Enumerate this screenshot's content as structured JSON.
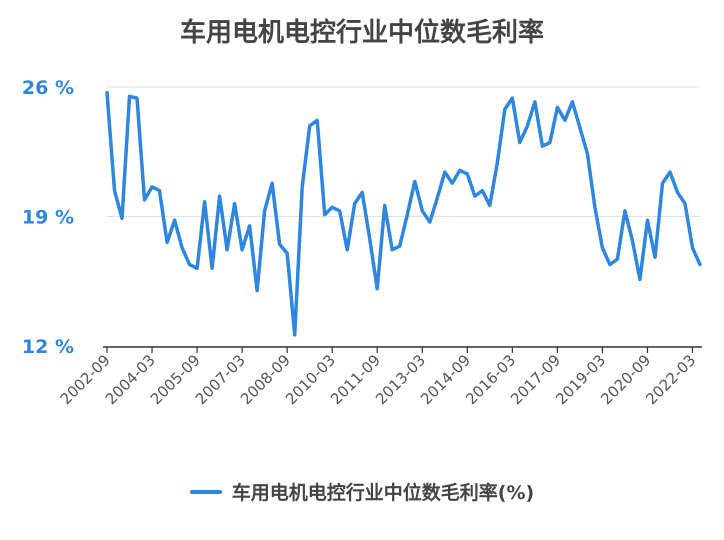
{
  "chart_data": {
    "type": "line",
    "title": "车用电机电控行业中位数毛利率",
    "xlabel": "",
    "ylabel": "",
    "y_ticks": [
      "26 %",
      "19 %",
      "12 %"
    ],
    "y_tick_values": [
      26,
      19,
      12
    ],
    "ylim": [
      12,
      26
    ],
    "x_tick_labels": [
      "2002-09",
      "2004-03",
      "2005-09",
      "2007-03",
      "2008-09",
      "2010-03",
      "2011-09",
      "2013-03",
      "2014-09",
      "2016-03",
      "2017-09",
      "2019-03",
      "2020-09",
      "2022-03"
    ],
    "x": [
      "2002-09",
      "2002-12",
      "2003-03",
      "2003-06",
      "2003-09",
      "2003-12",
      "2004-03",
      "2004-06",
      "2004-09",
      "2004-12",
      "2005-03",
      "2005-06",
      "2005-09",
      "2005-12",
      "2006-03",
      "2006-06",
      "2006-09",
      "2006-12",
      "2007-03",
      "2007-06",
      "2007-09",
      "2007-12",
      "2008-03",
      "2008-06",
      "2008-09",
      "2008-12",
      "2009-03",
      "2009-06",
      "2009-09",
      "2009-12",
      "2010-03",
      "2010-06",
      "2010-09",
      "2010-12",
      "2011-03",
      "2011-06",
      "2011-09",
      "2011-12",
      "2012-03",
      "2012-06",
      "2012-09",
      "2012-12",
      "2013-03",
      "2013-06",
      "2013-09",
      "2013-12",
      "2014-03",
      "2014-06",
      "2014-09",
      "2014-12",
      "2015-03",
      "2015-06",
      "2015-09",
      "2015-12",
      "2016-03",
      "2016-06",
      "2016-09",
      "2016-12",
      "2017-03",
      "2017-06",
      "2017-09",
      "2017-12",
      "2018-03",
      "2018-06",
      "2018-09",
      "2018-12",
      "2019-03",
      "2019-06",
      "2019-09",
      "2019-12",
      "2020-03",
      "2020-06",
      "2020-09",
      "2020-12",
      "2021-03",
      "2021-06",
      "2021-09",
      "2021-12",
      "2022-03",
      "2022-06"
    ],
    "series": [
      {
        "name": "车用电机电控行业中位数毛利率(%)",
        "color": "#2f86e0",
        "values": [
          25.7,
          20.4,
          18.9,
          25.5,
          25.4,
          19.9,
          20.6,
          20.4,
          17.6,
          18.8,
          17.3,
          16.4,
          16.2,
          19.8,
          16.2,
          20.1,
          17.2,
          19.7,
          17.2,
          18.5,
          15.0,
          19.3,
          20.8,
          17.5,
          17.0,
          12.6,
          20.6,
          23.9,
          24.2,
          19.1,
          19.5,
          19.3,
          17.2,
          19.7,
          20.3,
          17.8,
          15.1,
          19.6,
          17.2,
          17.4,
          19.1,
          20.9,
          19.3,
          18.7,
          20.0,
          21.4,
          20.8,
          21.5,
          21.3,
          20.1,
          20.4,
          19.6,
          21.9,
          24.8,
          25.4,
          23.0,
          23.9,
          25.2,
          22.8,
          23.0,
          24.9,
          24.2,
          25.2,
          23.8,
          22.4,
          19.5,
          17.3,
          16.4,
          16.7,
          19.3,
          17.7,
          15.6,
          18.8,
          16.8,
          20.8,
          21.4,
          20.3,
          19.7,
          17.3,
          16.4
        ]
      }
    ],
    "grid": true,
    "legend_position": "bottom-center"
  }
}
